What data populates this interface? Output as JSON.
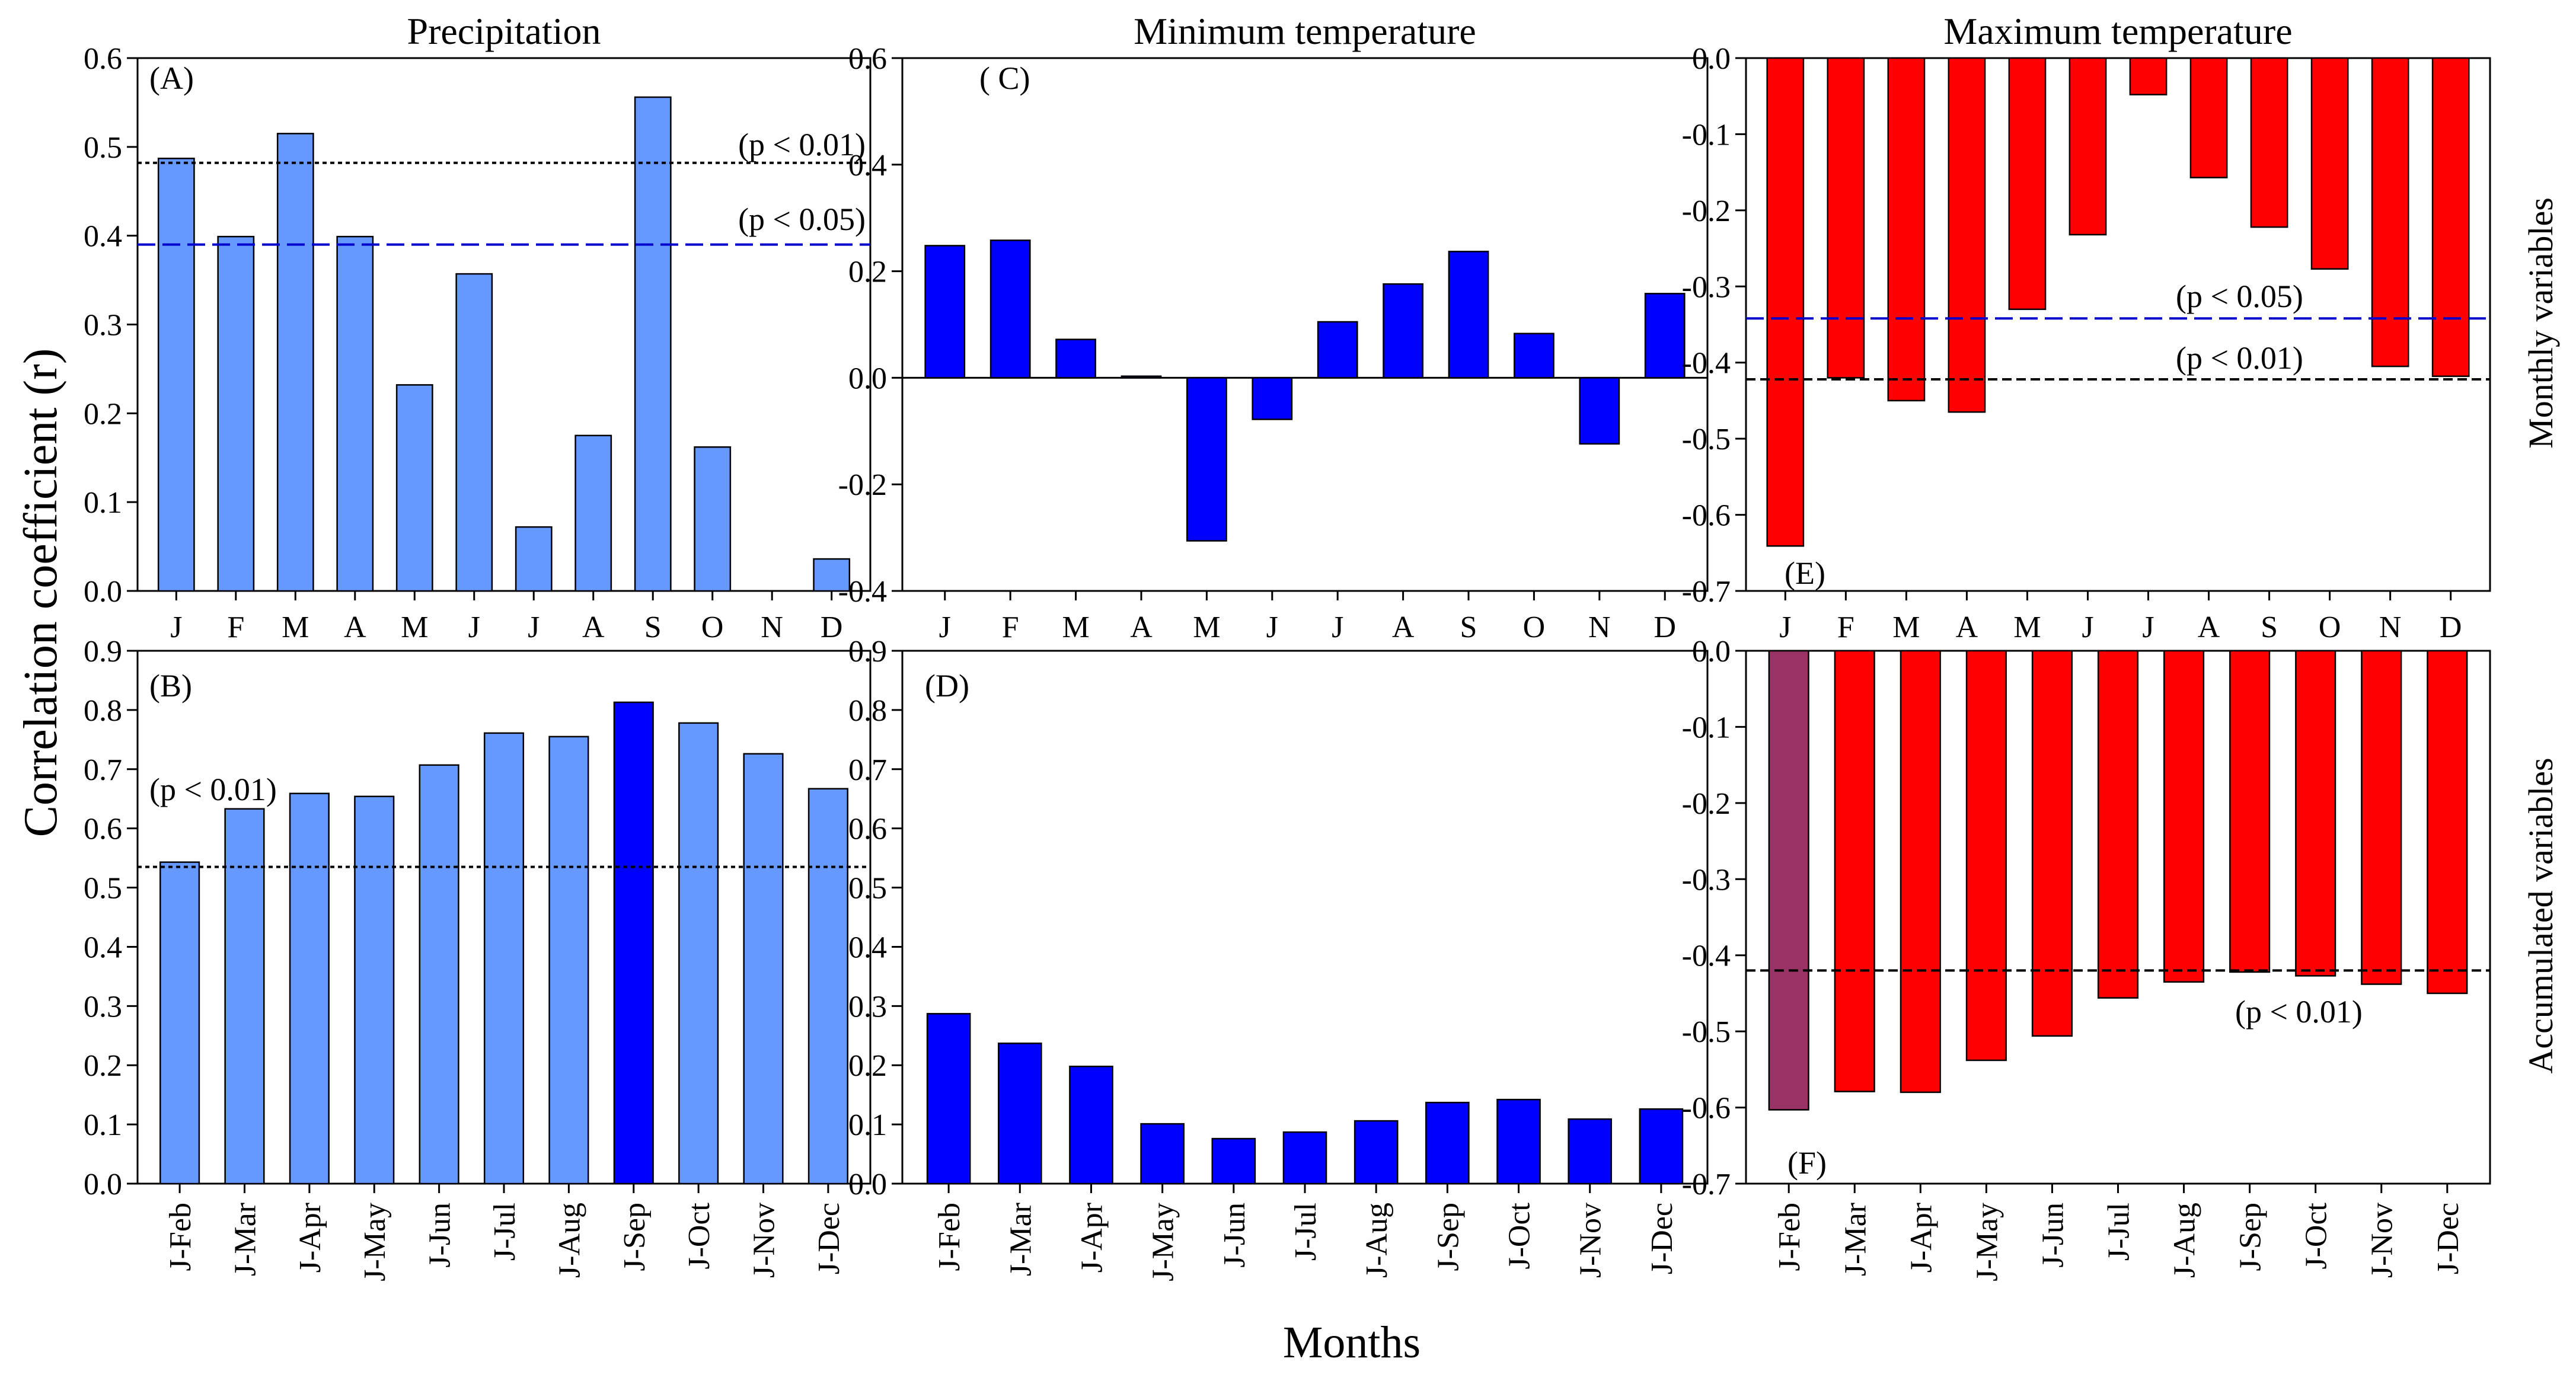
{
  "figure": {
    "y_axis_title": "Correlation coefficient (r)",
    "x_axis_title": "Months",
    "row_labels": [
      "Monthly variables",
      "Accumulated variables"
    ]
  },
  "colors": {
    "precip": "#6699FF",
    "precip_highlight": "#0000FF",
    "tmin": "#0000FF",
    "tmax": "#FF0000",
    "tmax_highlight": "#993366",
    "sig05": "#0000CC",
    "sig01": "#000000"
  },
  "chart_data": [
    {
      "id": "A",
      "type": "bar",
      "panel_label": "(A)",
      "title": "Precipitation",
      "categories": [
        "J",
        "F",
        "M",
        "A",
        "M",
        "J",
        "J",
        "A",
        "S",
        "O",
        "N",
        "D"
      ],
      "values": [
        0.487,
        0.399,
        0.515,
        0.399,
        0.232,
        0.357,
        0.072,
        0.175,
        0.556,
        0.162,
        0.0,
        0.036
      ],
      "ylim": [
        0,
        0.6
      ],
      "yticks": [
        "0.0",
        "0.1",
        "0.2",
        "0.3",
        "0.4",
        "0.5",
        "0.6"
      ],
      "thresholds": [
        {
          "value": 0.482,
          "label": "(p < 0.01)",
          "style": "sig01"
        },
        {
          "value": 0.39,
          "label": "(p < 0.05)",
          "style": "sig05"
        }
      ],
      "color": "precip"
    },
    {
      "id": "B",
      "type": "bar",
      "panel_label": "(B)",
      "title": "",
      "categories": [
        "J-Feb",
        "J-Mar",
        "J-Apr",
        "J-May",
        "J-Jun",
        "J-Jul",
        "J-Aug",
        "J-Sep",
        "J-Oct",
        "J-Nov",
        "J-Dec"
      ],
      "values": [
        0.543,
        0.633,
        0.659,
        0.654,
        0.707,
        0.761,
        0.755,
        0.813,
        0.778,
        0.726,
        0.667
      ],
      "ylim": [
        0,
        0.9
      ],
      "yticks": [
        "0.0",
        "0.1",
        "0.2",
        "0.3",
        "0.4",
        "0.5",
        "0.6",
        "0.7",
        "0.8",
        "0.9"
      ],
      "thresholds": [
        {
          "value": 0.535,
          "label": "(p < 0.01)",
          "style": "sig01"
        }
      ],
      "color": "precip",
      "highlight_index": 7,
      "highlight_color": "precip_highlight"
    },
    {
      "id": "C",
      "type": "bar",
      "panel_label": "( C)",
      "title": "Minimum temperature",
      "categories": [
        "J",
        "F",
        "M",
        "A",
        "M",
        "J",
        "J",
        "A",
        "S",
        "O",
        "N",
        "D"
      ],
      "values": [
        0.248,
        0.258,
        0.072,
        0.003,
        -0.306,
        -0.078,
        0.105,
        0.176,
        0.237,
        0.083,
        -0.124,
        0.158
      ],
      "ylim": [
        -0.4,
        0.6
      ],
      "yticks": [
        "-0.4",
        "-0.2",
        "0.0",
        "0.2",
        "0.4",
        "0.6"
      ],
      "thresholds": [],
      "color": "tmin"
    },
    {
      "id": "D",
      "type": "bar",
      "panel_label": "(D)",
      "title": "",
      "categories": [
        "J-Feb",
        "J-Mar",
        "J-Apr",
        "J-May",
        "J-Jun",
        "J-Jul",
        "J-Aug",
        "J-Sep",
        "J-Oct",
        "J-Nov",
        "J-Dec"
      ],
      "values": [
        0.287,
        0.237,
        0.198,
        0.101,
        0.076,
        0.087,
        0.106,
        0.137,
        0.142,
        0.109,
        0.126
      ],
      "ylim": [
        0,
        0.9
      ],
      "yticks": [
        "0.0",
        "0.1",
        "0.2",
        "0.3",
        "0.4",
        "0.5",
        "0.6",
        "0.7",
        "0.8",
        "0.9"
      ],
      "thresholds": [],
      "color": "tmin"
    },
    {
      "id": "E",
      "type": "bar",
      "panel_label": "(E)",
      "title": "Maximum temperature",
      "categories": [
        "J",
        "F",
        "M",
        "A",
        "M",
        "J",
        "J",
        "A",
        "S",
        "O",
        "N",
        "D"
      ],
      "values": [
        -0.641,
        -0.42,
        -0.45,
        -0.465,
        -0.33,
        -0.232,
        -0.048,
        -0.157,
        -0.222,
        -0.277,
        -0.405,
        -0.418
      ],
      "ylim": [
        -0.7,
        0.0
      ],
      "yticks": [
        "-0.7",
        "-0.6",
        "-0.5",
        "-0.4",
        "-0.3",
        "-0.2",
        "-0.1",
        "0.0"
      ],
      "thresholds": [
        {
          "value": -0.342,
          "label": "(p < 0.05)",
          "style": "sig05"
        },
        {
          "value": -0.422,
          "label": "(p < 0.01)",
          "style": "sig01"
        }
      ],
      "color": "tmax"
    },
    {
      "id": "F",
      "type": "bar",
      "panel_label": "(F)",
      "title": "",
      "categories": [
        "J-Feb",
        "J-Mar",
        "J-Apr",
        "J-May",
        "J-Jun",
        "J-Jul",
        "J-Aug",
        "J-Sep",
        "J-Oct",
        "J-Nov",
        "J-Dec"
      ],
      "values": [
        -0.603,
        -0.579,
        -0.58,
        -0.538,
        -0.506,
        -0.456,
        -0.435,
        -0.422,
        -0.427,
        -0.438,
        -0.45
      ],
      "ylim": [
        -0.7,
        0.0
      ],
      "yticks": [
        "-0.7",
        "-0.6",
        "-0.5",
        "-0.4",
        "-0.3",
        "-0.2",
        "-0.1",
        "0.0"
      ],
      "thresholds": [
        {
          "value": -0.42,
          "label": "(p < 0.01)",
          "style": "sig01"
        }
      ],
      "color": "tmax",
      "highlight_index": 0,
      "highlight_color": "tmax_highlight"
    }
  ]
}
